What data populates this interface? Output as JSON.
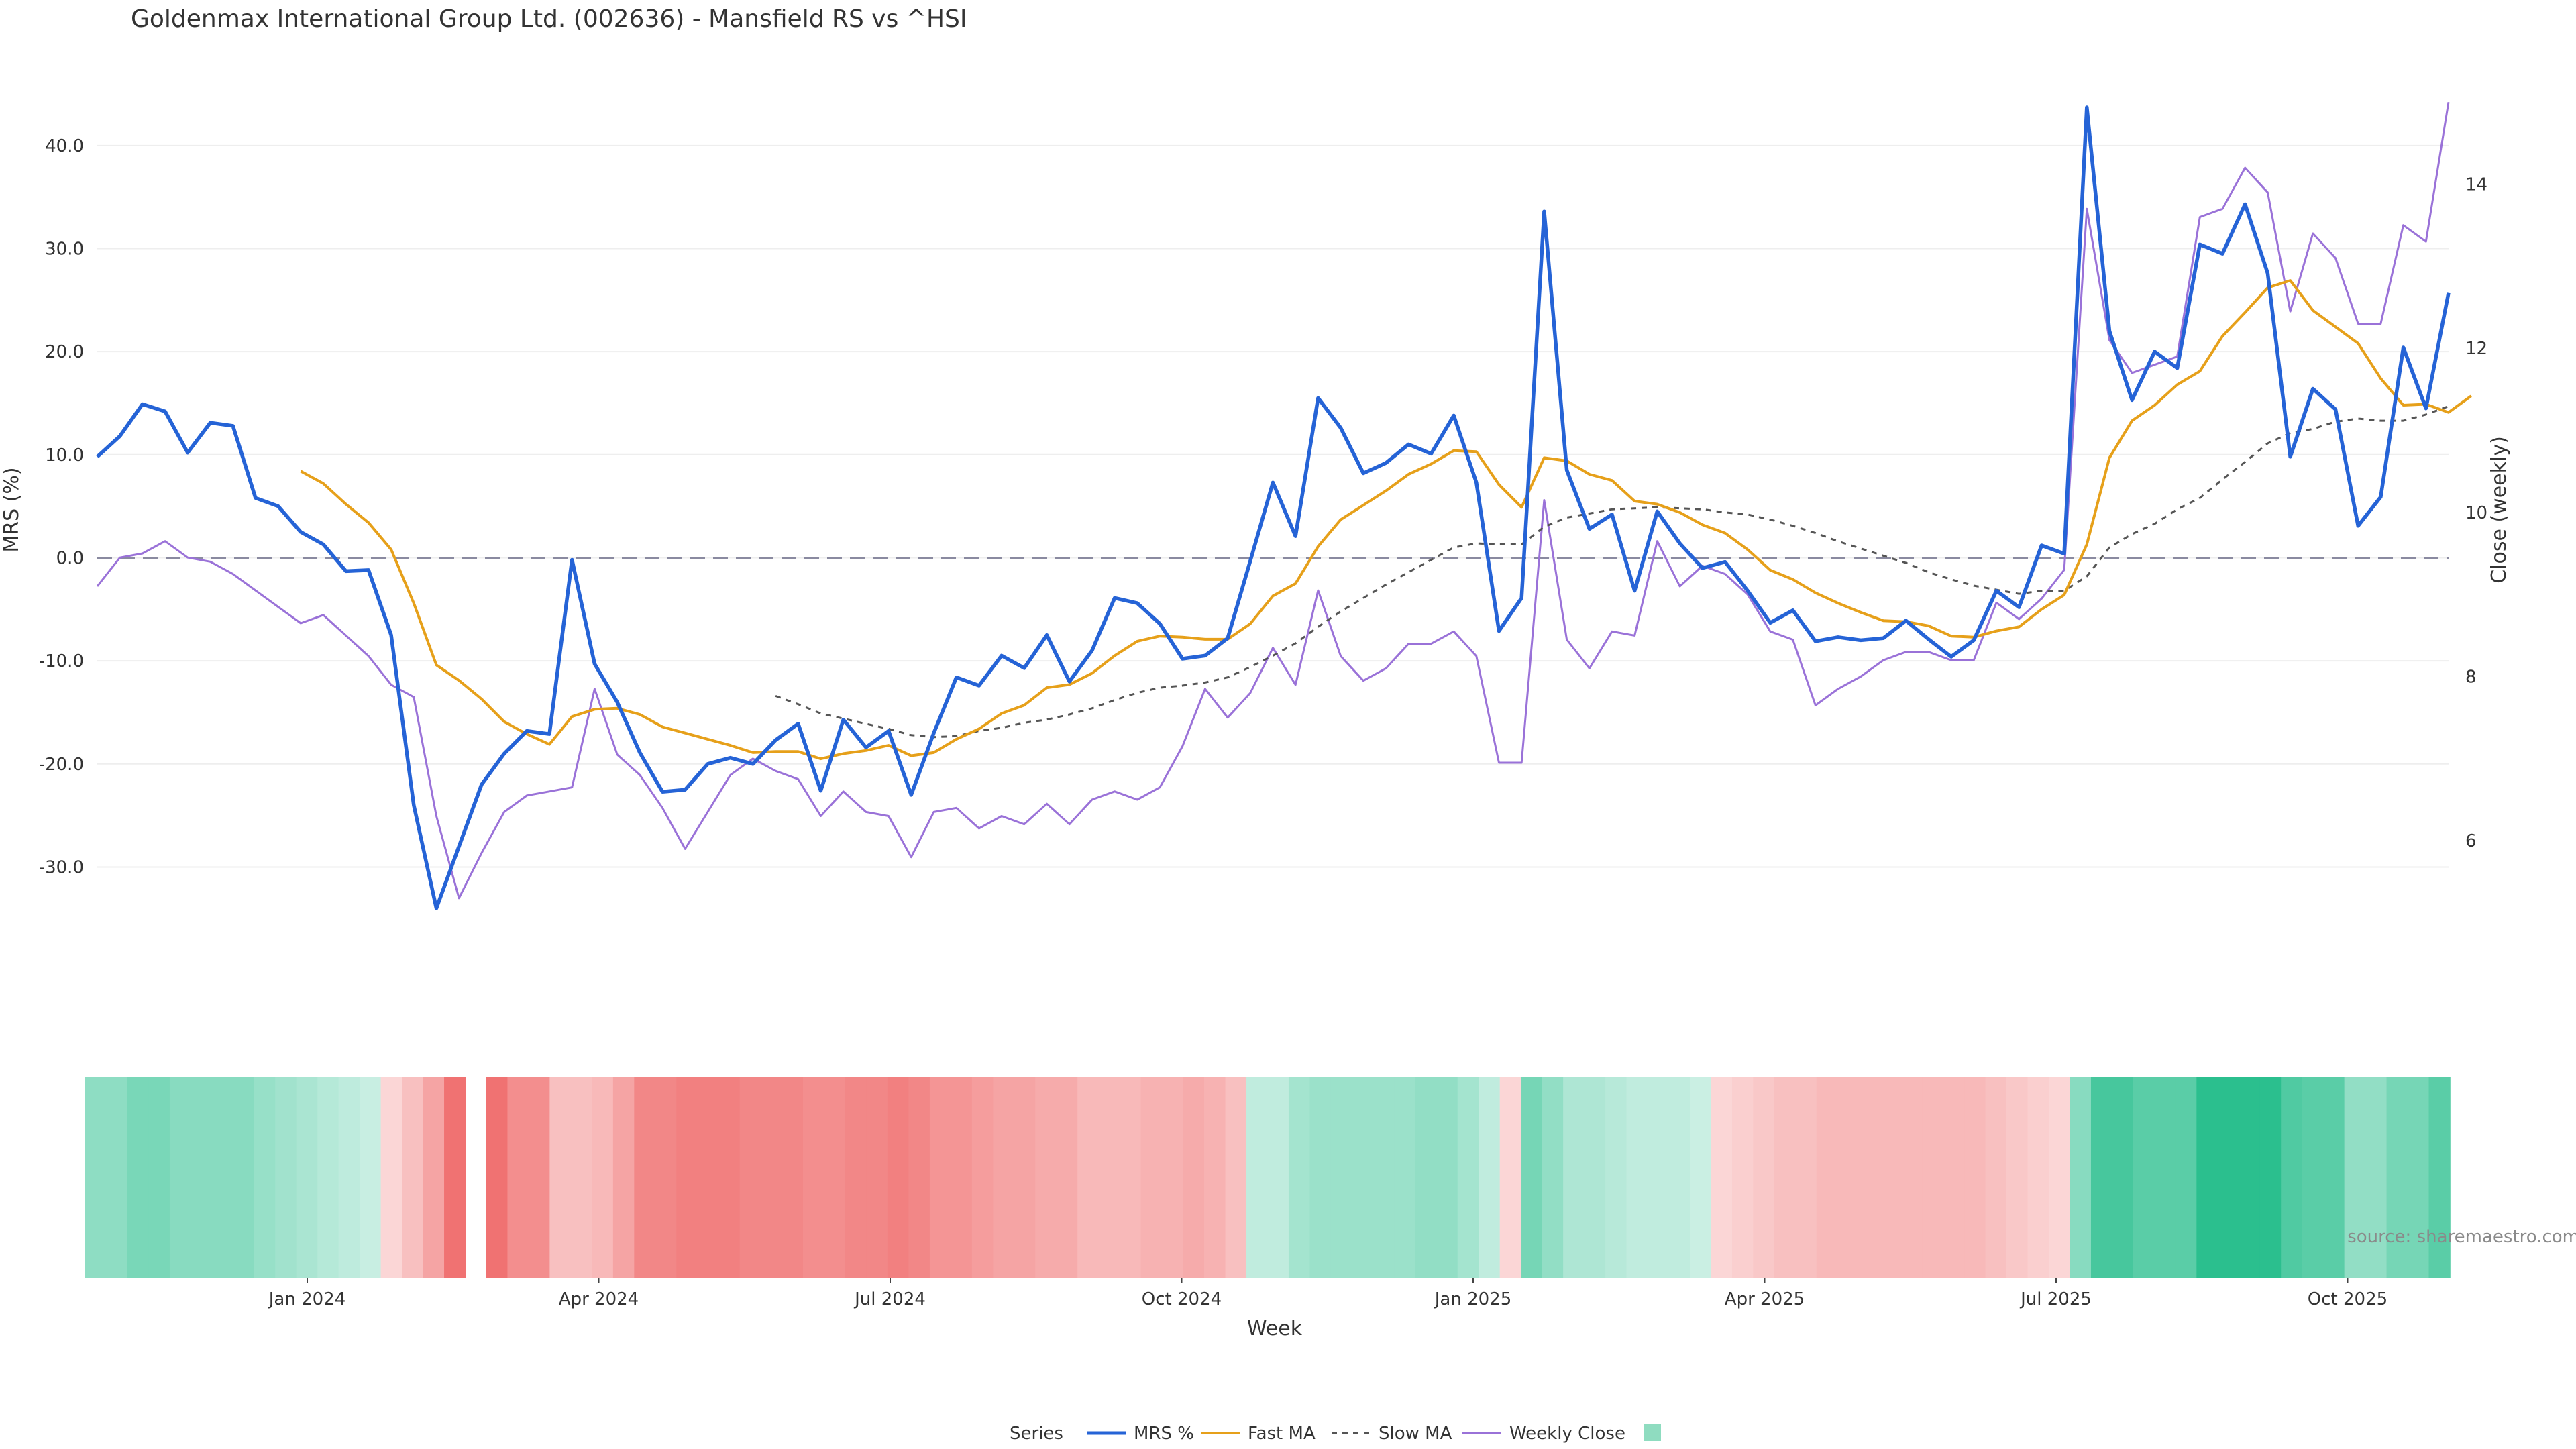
{
  "title": "Goldenmax International Group Ltd. (002636) - Mansfield RS vs ^HSI",
  "source": "source: sharemaestro.com",
  "colors": {
    "mrs": "#2563d6",
    "fast_ma": "#e6a01a",
    "slow_ma": "#555555",
    "close": "#9a72d8",
    "zero_line": "#8a8aa0",
    "grid": "#eeeeee",
    "heat_positive": "#2bbf8e",
    "heat_negative": "#ee5c5c"
  },
  "chart_data": {
    "type": "line",
    "title": "Goldenmax International Group Ltd. (002636) - Mansfield RS vs ^HSI",
    "xlabel": "Week",
    "ylabel": "MRS (%)",
    "y2label": "Close (weekly)",
    "ylim": [
      -37,
      45
    ],
    "y2lim": [
      4.8,
      15.1
    ],
    "yticks": [
      "40.0",
      "30.0",
      "20.0",
      "10.0",
      "0.0",
      "-10.0",
      "-20.0",
      "-30.0"
    ],
    "y2ticks": [
      "14",
      "12",
      "10",
      "8",
      "6"
    ],
    "xticks": [
      "Jan 2024",
      "Apr 2024",
      "Jul 2024",
      "Oct 2024",
      "Jan 2025",
      "Apr 2025",
      "Jul 2025",
      "Oct 2025"
    ],
    "grid": true,
    "legend_position": "bottom",
    "legend_title": "Series",
    "legend": [
      "MRS %",
      "Fast MA",
      "Slow MA",
      "Weekly Close",
      ""
    ],
    "series": [
      {
        "name": "MRS %",
        "axis": "left",
        "values": [
          9.8,
          11.8,
          14.9,
          14.2,
          10.2,
          13.1,
          12.8,
          5.8,
          5,
          2.5,
          1.3,
          -1.3,
          -1.2,
          -7.5,
          -24,
          -34,
          -28,
          -22,
          -19,
          -16.8,
          -17.1,
          -0.2,
          -10.3,
          -14,
          -18.9,
          -22.7,
          -22.5,
          -20,
          -19.4,
          -20,
          -17.7,
          -16.1,
          -22.6,
          -15.7,
          -18.4,
          -16.8,
          -23,
          -17,
          -11.6,
          -12.4,
          -9.5,
          -10.7,
          -7.5,
          -12,
          -9,
          -3.9,
          -4.4,
          -6.4,
          -9.8,
          -9.5,
          -7.8,
          -0.3,
          7.3,
          2.1,
          15.5,
          12.6,
          8.2,
          9.2,
          11,
          10.1,
          13.8,
          7.3,
          -7.1,
          -3.9,
          33.6,
          8.5,
          2.8,
          4.2,
          -3.2,
          4.5,
          1.4,
          -1,
          -0.4,
          -3.2,
          -6.3,
          -5.1,
          -8.1,
          -7.7,
          -8,
          -7.8,
          -6.1,
          -7.9,
          -9.6,
          -8,
          -3.2,
          -4.8,
          1.2,
          0.4,
          43.7,
          22,
          15.3,
          20,
          18.4,
          30.4,
          29.5,
          34.3,
          27.6,
          9.8,
          16.4,
          14.4,
          3.1,
          5.9,
          20.4,
          14.5,
          25.7
        ]
      },
      {
        "name": "Fast MA",
        "axis": "left",
        "values": [
          null,
          null,
          null,
          null,
          null,
          null,
          null,
          null,
          null,
          8.4,
          7.2,
          5.2,
          3.4,
          0.8,
          -4.4,
          -10.4,
          -11.9,
          -13.7,
          -15.9,
          -17.1,
          -18.1,
          -15.4,
          -14.7,
          -14.6,
          -15.2,
          -16.4,
          -17,
          -17.6,
          -18.2,
          -18.9,
          -18.8,
          -18.8,
          -19.5,
          -19,
          -18.7,
          -18.2,
          -19.2,
          -18.9,
          -17.6,
          -16.6,
          -15.1,
          -14.3,
          -12.6,
          -12.3,
          -11.2,
          -9.5,
          -8.1,
          -7.6,
          -7.7,
          -7.9,
          -7.9,
          -6.4,
          -3.7,
          -2.5,
          1.1,
          3.7,
          5.1,
          6.5,
          8.1,
          9.1,
          10.4,
          10.3,
          7.1,
          4.9,
          9.7,
          9.4,
          8.1,
          7.5,
          5.5,
          5.2,
          4.4,
          3.2,
          2.4,
          0.8,
          -1.2,
          -2.1,
          -3.4,
          -4.4,
          -5.3,
          -6.1,
          -6.2,
          -6.6,
          -7.6,
          -7.7,
          -7.1,
          -6.7,
          -5,
          -3.6,
          1.3,
          9.7,
          13.3,
          14.8,
          16.8,
          18.1,
          21.5,
          23.8,
          26.2,
          26.9,
          24,
          22.4,
          20.8,
          17.4,
          14.8,
          14.9,
          14.1,
          15.7
        ]
      },
      {
        "name": "Slow MA",
        "axis": "left",
        "values": [
          null,
          null,
          null,
          null,
          null,
          null,
          null,
          null,
          null,
          null,
          null,
          null,
          null,
          null,
          null,
          null,
          null,
          null,
          null,
          null,
          null,
          null,
          null,
          null,
          null,
          null,
          null,
          null,
          null,
          null,
          -13.4,
          -14.2,
          -15.1,
          -15.6,
          -16.1,
          -16.6,
          -17.2,
          -17.4,
          -17.3,
          -16.8,
          -16.5,
          -16,
          -15.7,
          -15.2,
          -14.6,
          -13.8,
          -13.1,
          -12.6,
          -12.4,
          -12.1,
          -11.6,
          -10.6,
          -9.5,
          -8.3,
          -6.7,
          -5.2,
          -3.9,
          -2.6,
          -1.4,
          -0.2,
          1,
          1.4,
          1.3,
          1.3,
          3,
          3.9,
          4.3,
          4.7,
          4.8,
          4.9,
          4.8,
          4.7,
          4.4,
          4.2,
          3.7,
          3.1,
          2.4,
          1.6,
          0.9,
          0.2,
          -0.5,
          -1.4,
          -2.1,
          -2.7,
          -3.1,
          -3.5,
          -3.2,
          -3.2,
          -1.8,
          1,
          2.3,
          3.3,
          4.7,
          5.8,
          7.6,
          9.3,
          11.1,
          12.1,
          12.5,
          13.2,
          13.5,
          13.3,
          13.3,
          13.9,
          14.7
        ]
      },
      {
        "name": "Weekly Close",
        "axis": "right",
        "values": [
          9.1,
          9.45,
          9.5,
          9.65,
          9.45,
          9.4,
          9.25,
          9.05,
          8.85,
          8.65,
          8.75,
          8.5,
          8.25,
          7.9,
          7.75,
          6.3,
          5.3,
          5.85,
          6.35,
          6.55,
          6.6,
          6.65,
          7.85,
          7.05,
          6.8,
          6.4,
          5.9,
          6.35,
          6.8,
          7,
          6.85,
          6.75,
          6.3,
          6.6,
          6.35,
          6.3,
          5.8,
          6.35,
          6.4,
          6.15,
          6.3,
          6.2,
          6.45,
          6.2,
          6.5,
          6.6,
          6.5,
          6.65,
          7.15,
          7.85,
          7.5,
          7.8,
          8.35,
          7.9,
          9.05,
          8.25,
          7.95,
          8.1,
          8.4,
          8.4,
          8.55,
          8.25,
          6.95,
          6.95,
          10.15,
          8.45,
          8.1,
          8.55,
          8.5,
          9.65,
          9.1,
          9.35,
          9.25,
          9,
          8.55,
          8.45,
          7.65,
          7.85,
          8,
          8.2,
          8.3,
          8.3,
          8.2,
          8.2,
          8.9,
          8.7,
          8.95,
          9.3,
          13.7,
          12.1,
          11.7,
          11.8,
          11.9,
          13.6,
          13.7,
          14.2,
          13.9,
          12.45,
          13.4,
          13.1,
          12.3,
          12.3,
          13.5,
          13.3,
          15
        ]
      }
    ],
    "heatmap_strip": {
      "values": [
        0.47,
        0.47,
        0.58,
        0.58,
        0.5,
        0.5,
        0.5,
        0.5,
        0.42,
        0.37,
        0.32,
        0.26,
        0.21,
        0.16,
        -0.15,
        -0.3,
        -0.5,
        -0.85,
        null,
        -0.85,
        -0.65,
        -0.65,
        -0.3,
        -0.3,
        -0.35,
        -0.5,
        -0.7,
        -0.7,
        -0.75,
        -0.75,
        -0.75,
        -0.7,
        -0.7,
        -0.7,
        -0.65,
        -0.65,
        -0.7,
        -0.7,
        -0.75,
        -0.7,
        -0.6,
        -0.6,
        -0.55,
        -0.5,
        -0.5,
        -0.45,
        -0.45,
        -0.35,
        -0.35,
        -0.35,
        -0.4,
        -0.4,
        -0.45,
        -0.4,
        -0.3,
        0.2,
        0.2,
        0.35,
        0.4,
        0.4,
        0.4,
        0.4,
        0.4,
        0.45,
        0.45,
        0.35,
        0.2,
        -0.15,
        0.6,
        0.45,
        0.3,
        0.3,
        0.25,
        0.2,
        0.2,
        0.2,
        0.15,
        -0.15,
        -0.2,
        -0.25,
        -0.3,
        -0.3,
        -0.35,
        -0.35,
        -0.35,
        -0.35,
        -0.35,
        -0.35,
        -0.35,
        -0.35,
        -0.3,
        -0.25,
        -0.2,
        -0.15,
        0.5,
        0.85,
        0.85,
        0.75,
        0.75,
        0.75,
        1,
        1,
        1,
        1,
        0.8,
        0.75,
        0.75,
        0.45,
        0.45,
        0.6,
        0.6,
        0.75
      ]
    }
  }
}
